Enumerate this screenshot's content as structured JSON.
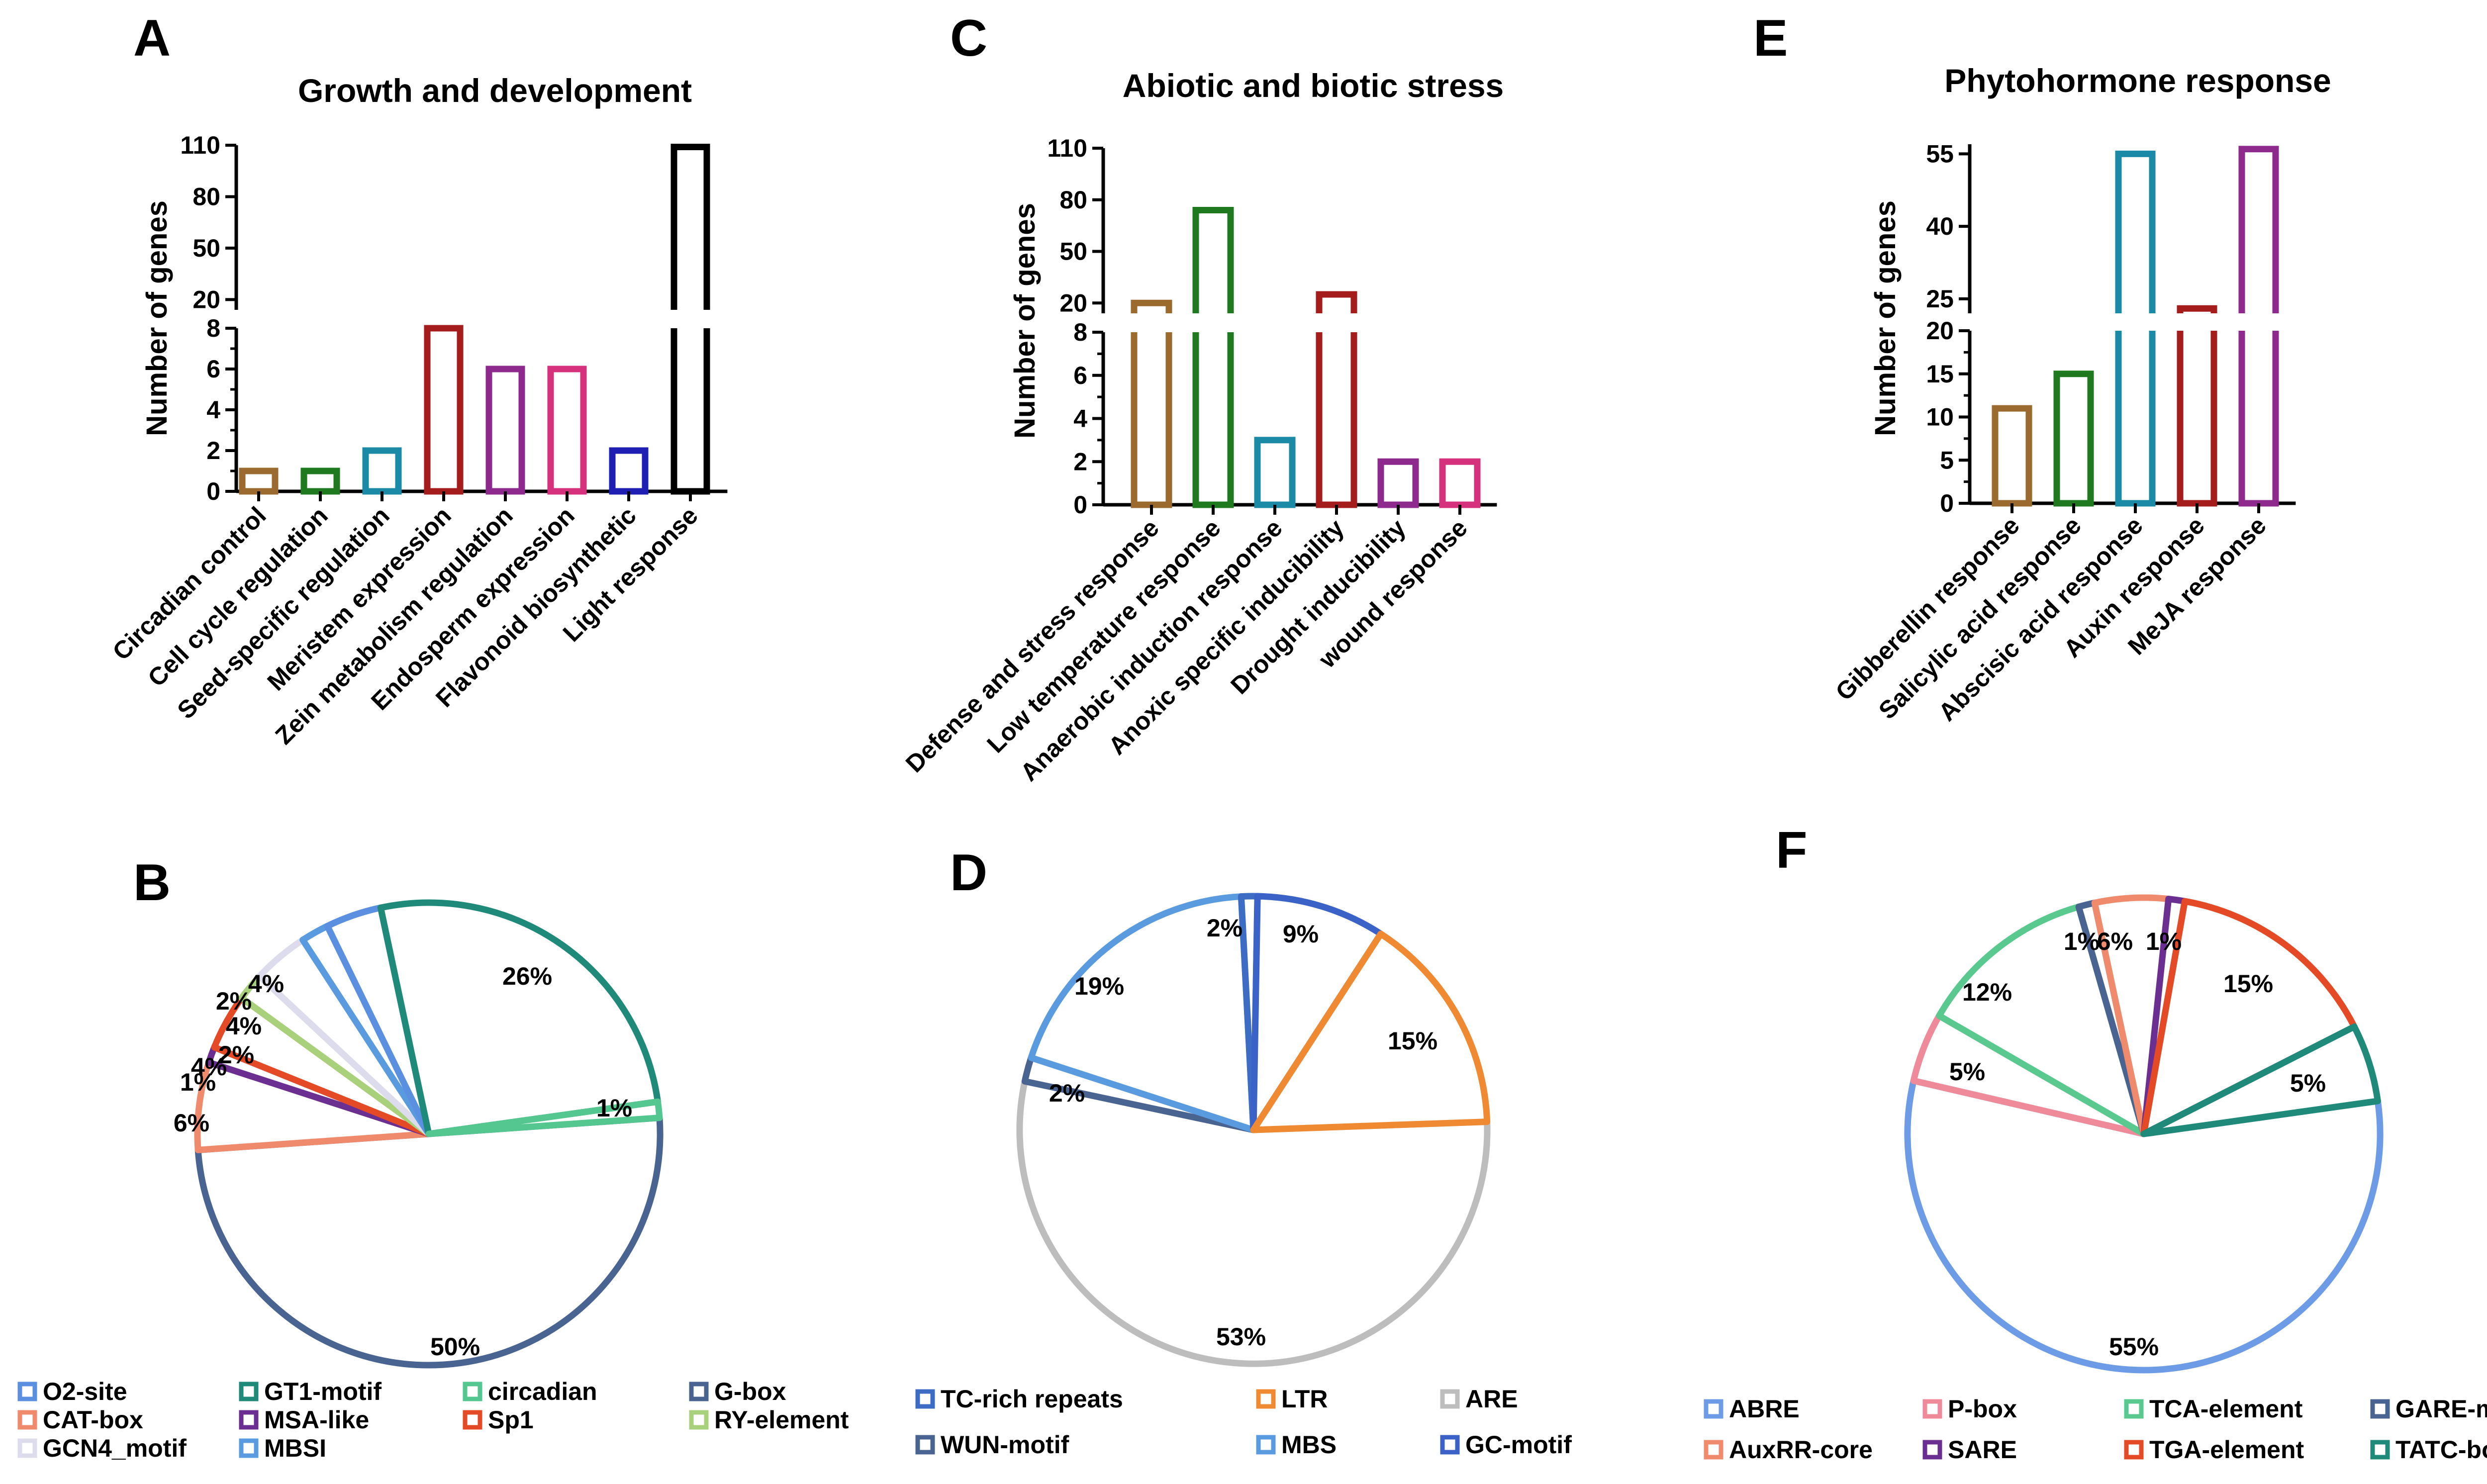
{
  "figure": {
    "letters": {
      "A": "A",
      "B": "B",
      "C": "C",
      "D": "D",
      "E": "E",
      "F": "F"
    }
  },
  "chart_data": [
    {
      "panel": "A",
      "type": "bar",
      "title": "Growth and development",
      "ylabel": "Number of genes",
      "categories": [
        "Circadian control",
        "Cell cycle regulation",
        "Seed-specific regulation",
        "Meristem expression",
        "Zein metabolism regulation",
        "Endosperm expression",
        "Flavonoid biosynthetic",
        "Light response"
      ],
      "values": [
        1,
        1,
        2,
        8,
        6,
        6,
        2,
        109
      ],
      "colors": [
        "#9a6a2f",
        "#1f7a1f",
        "#1b8aa6",
        "#a51c1c",
        "#8e2a8e",
        "#d6317c",
        "#1f1fb3",
        "#000000"
      ],
      "axis_break": {
        "lower": [
          0,
          8
        ],
        "upper": [
          14,
          110
        ]
      },
      "lower_ticks": [
        0,
        2,
        4,
        6,
        8
      ],
      "lower_tick_labels": [
        "0",
        "2",
        "4",
        "6",
        "8"
      ],
      "upper_ticks": [
        20,
        50,
        80,
        110
      ],
      "upper_tick_labels": [
        "20",
        "50",
        "80",
        "110"
      ]
    },
    {
      "panel": "C",
      "type": "bar",
      "title": "Abiotic and biotic stress",
      "ylabel": "Number of genes",
      "categories": [
        "Defense and stress response",
        "Low temperature response",
        "Anaerobic induction response",
        "Anoxic specific inducibility",
        "Drought inducibility",
        "wound response"
      ],
      "values": [
        20,
        74,
        3,
        25,
        2,
        2
      ],
      "colors": [
        "#9a6a2f",
        "#1f7a1f",
        "#1b8aa6",
        "#a51c1c",
        "#8e2a8e",
        "#d6317c"
      ],
      "axis_break": {
        "lower": [
          0,
          8
        ],
        "upper": [
          14,
          110
        ]
      },
      "lower_ticks": [
        0,
        2,
        4,
        6,
        8
      ],
      "lower_tick_labels": [
        "0",
        "2",
        "4",
        "6",
        "8"
      ],
      "upper_ticks": [
        20,
        50,
        80,
        110
      ],
      "upper_tick_labels": [
        "20",
        "50",
        "80",
        "110"
      ]
    },
    {
      "panel": "E",
      "type": "bar",
      "title": "Phytohormone response",
      "ylabel": "Number of genes",
      "categories": [
        "Gibberellin response",
        "Salicylic acid response",
        "Abscisic acid response",
        "Auxin response",
        "MeJA response"
      ],
      "values": [
        11,
        15,
        55,
        23,
        56
      ],
      "colors": [
        "#9a6a2f",
        "#1f7a1f",
        "#1b8aa6",
        "#a51c1c",
        "#8e2a8e"
      ],
      "axis_break": {
        "lower": [
          0,
          20
        ],
        "upper": [
          22,
          57
        ]
      },
      "lower_ticks": [
        0,
        5,
        10,
        15,
        20
      ],
      "lower_tick_labels": [
        "0",
        "5",
        "10",
        "15",
        "20"
      ],
      "upper_ticks": [
        25,
        40,
        55
      ],
      "upper_tick_labels": [
        "25",
        "40",
        "55"
      ]
    },
    {
      "panel": "B",
      "type": "pie",
      "title": "",
      "slices": [
        {
          "name": "G-box",
          "value": 50,
          "label": "50%",
          "color": "#4a6491",
          "start_deg": 86,
          "end_deg": 266
        },
        {
          "name": "CAT-box",
          "value": 6,
          "label": "6%",
          "color": "#ef8a6d",
          "start_deg": 266,
          "end_deg": 288
        },
        {
          "name": "MSA-like",
          "value": 1,
          "label": "1%",
          "color": "#6b2f91",
          "start_deg": 288,
          "end_deg": 292
        },
        {
          "name": "Sp1",
          "value": 4,
          "label": "4%",
          "color": "#e44a26",
          "start_deg": 292,
          "end_deg": 306
        },
        {
          "name": "RY-element",
          "value": 2,
          "label": "2%",
          "color": "#a9d07a",
          "start_deg": 306,
          "end_deg": 313
        },
        {
          "name": "GCN4_motif",
          "value": 4,
          "label": "4%",
          "color": "#dcdcec",
          "start_deg": 313,
          "end_deg": 327
        },
        {
          "name": "MBSI",
          "value": 2,
          "label": "2%",
          "color": "#5a9be0",
          "start_deg": 327,
          "end_deg": 334
        },
        {
          "name": "O2-site",
          "value": 4,
          "label": "4%",
          "color": "#5b8fe0",
          "start_deg": 334,
          "end_deg": 348
        },
        {
          "name": "GT1-motif",
          "value": 26,
          "label": "26%",
          "color": "#1f8a7a",
          "start_deg": 348,
          "end_deg": 442
        },
        {
          "name": "circadian",
          "value": 1,
          "label": "1%",
          "color": "#54c690",
          "start_deg": 442,
          "end_deg": 446
        }
      ],
      "legend": [
        "O2-site",
        "GT1-motif",
        "circadian",
        "G-box",
        "CAT-box",
        "MSA-like",
        "Sp1",
        "RY-element",
        "GCN4_motif",
        "MBSI"
      ]
    },
    {
      "panel": "D",
      "type": "pie",
      "title": "",
      "slices": [
        {
          "name": "ARE",
          "value": 53,
          "label": "53%",
          "color": "#bdbdbd",
          "start_deg": 88,
          "end_deg": 282
        },
        {
          "name": "WUN-motif",
          "value": 2,
          "label": "2%",
          "color": "#4a6491",
          "start_deg": 282,
          "end_deg": 288
        },
        {
          "name": "MBS",
          "value": 19,
          "label": "19%",
          "color": "#5a9be0",
          "start_deg": 288,
          "end_deg": 357
        },
        {
          "name": "TC-rich repeats",
          "value": 2,
          "label": "2%",
          "color": "#3d6cc4",
          "start_deg": 357,
          "end_deg": 361
        },
        {
          "name": "GC-motif",
          "value": 9,
          "label": "9%",
          "color": "#3b63c7",
          "start_deg": 361,
          "end_deg": 393
        },
        {
          "name": "LTR",
          "value": 15,
          "label": "15%",
          "color": "#ef8a32",
          "start_deg": 393,
          "end_deg": 448
        }
      ],
      "legend": [
        "TC-rich repeats",
        "LTR",
        "ARE",
        "WUN-motif",
        "MBS",
        "GC-motif"
      ]
    },
    {
      "panel": "F",
      "type": "pie",
      "title": "",
      "slices": [
        {
          "name": "ABRE",
          "value": 55,
          "label": "55%",
          "color": "#6d9be6",
          "start_deg": 82,
          "end_deg": 283
        },
        {
          "name": "P-box",
          "value": 5,
          "label": "5%",
          "color": "#ef8a9a",
          "start_deg": 283,
          "end_deg": 300
        },
        {
          "name": "TCA-element",
          "value": 12,
          "label": "12%",
          "color": "#5ac98f",
          "start_deg": 300,
          "end_deg": 344
        },
        {
          "name": "GARE-motif",
          "value": 1,
          "label": "1%",
          "color": "#4a6491",
          "start_deg": 344,
          "end_deg": 348
        },
        {
          "name": "AuxRR-core",
          "value": 6,
          "label": "6%",
          "color": "#ef8a6d",
          "start_deg": 348,
          "end_deg": 6
        },
        {
          "name": "SARE",
          "value": 1,
          "label": "1%",
          "color": "#6b2f91",
          "start_deg": 6,
          "end_deg": 10
        },
        {
          "name": "TGA-element",
          "value": 15,
          "label": "15%",
          "color": "#e44a26",
          "start_deg": 10,
          "end_deg": 63
        },
        {
          "name": "TATC-box",
          "value": 5,
          "label": "5%",
          "color": "#1f8a7a",
          "start_deg": 63,
          "end_deg": 82
        }
      ],
      "legend": [
        "ABRE",
        "P-box",
        "TCA-element",
        "GARE-motif",
        "AuxRR-core",
        "SARE",
        "TGA-element",
        "TATC-box"
      ]
    }
  ]
}
